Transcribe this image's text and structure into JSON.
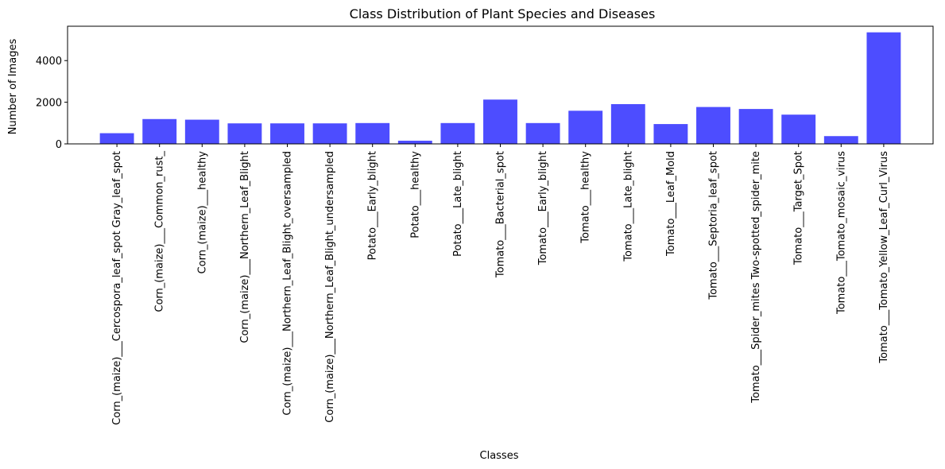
{
  "chart_data": {
    "type": "bar",
    "title": "Class Distribution of Plant Species and Diseases",
    "xlabel": "Classes",
    "ylabel": "Number of Images",
    "ylim": [
      0,
      5650
    ],
    "yticks": [
      0,
      2000,
      4000
    ],
    "bar_color": "#4d4dff",
    "grid": false,
    "categories": [
      "Corn_(maize)___Cercospora_leaf_spot Gray_leaf_spot",
      "Corn_(maize)___Common_rust_",
      "Corn_(maize)___healthy",
      "Corn_(maize)___Northern_Leaf_Blight",
      "Corn_(maize)___Northern_Leaf_Blight_oversampled",
      "Corn_(maize)___Northern_Leaf_Blight_undersampled",
      "Potato___Early_blight",
      "Potato___healthy",
      "Potato___Late_blight",
      "Tomato___Bacterial_spot",
      "Tomato___Early_blight",
      "Tomato___healthy",
      "Tomato___Late_blight",
      "Tomato___Leaf_Mold",
      "Tomato___Septoria_leaf_spot",
      "Tomato___Spider_mites Two-spotted_spider_mite",
      "Tomato___Target_Spot",
      "Tomato___Tomato_mosaic_virus",
      "Tomato___Tomato_Yellow_Leaf_Curl_Virus"
    ],
    "values": [
      513,
      1192,
      1162,
      985,
      985,
      985,
      1000,
      152,
      1000,
      2127,
      1000,
      1591,
      1909,
      952,
      1771,
      1676,
      1404,
      373,
      5357
    ]
  }
}
